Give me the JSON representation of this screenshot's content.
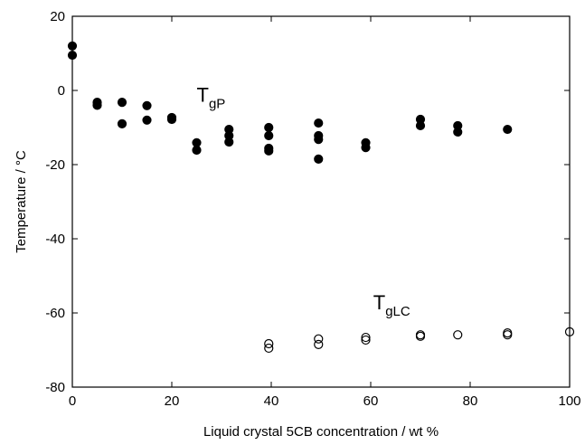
{
  "chart_data": {
    "type": "scatter",
    "xlabel": "Liquid crystal 5CB concentration / wt  %",
    "ylabel": "Temperature / °C",
    "xlim": [
      0,
      100
    ],
    "xticks": [
      0,
      20,
      40,
      60,
      80,
      100
    ],
    "ylim": [
      -80,
      20
    ],
    "yticks": [
      -80,
      -60,
      -40,
      -20,
      0,
      20
    ],
    "annotations": [
      {
        "text": "T",
        "sub": "gP",
        "x": 25,
        "y": -3
      },
      {
        "text": "T",
        "sub": "gLC",
        "x": 60.5,
        "y": -59
      }
    ],
    "series": [
      {
        "color": "#000000",
        "marker": "filled",
        "x": [
          0,
          0,
          5,
          5,
          10,
          10,
          15,
          15,
          20,
          20,
          25,
          25,
          31.5,
          31.5,
          31.5,
          39.5,
          39.5,
          39.5,
          39.5,
          49.5,
          49.5,
          49.5,
          49.5,
          59,
          59,
          70,
          70,
          77.5,
          77.5,
          87.5
        ],
        "values": [
          12,
          9.5,
          -3.2,
          -4,
          -3.2,
          -9,
          -4.1,
          -8,
          -7.3,
          -7.8,
          -14.1,
          -16.1,
          -10.5,
          -12.2,
          -13.9,
          -10,
          -12.2,
          -15.6,
          -16.3,
          -8.8,
          -12.2,
          -13.2,
          -18.5,
          -14.1,
          -15.4,
          -7.8,
          -9.5,
          -9.5,
          -11.2,
          -10.5
        ]
      },
      {
        "color": "#000000",
        "marker": "open",
        "x": [
          39.5,
          39.5,
          49.5,
          49.5,
          59,
          59,
          70,
          70,
          77.5,
          87.5,
          87.5,
          100
        ],
        "values": [
          -68.3,
          -69.5,
          -67,
          -68.5,
          -66.6,
          -67.3,
          -65.9,
          -66.3,
          -65.9,
          -65.4,
          -65.9,
          -65.1
        ]
      }
    ]
  }
}
